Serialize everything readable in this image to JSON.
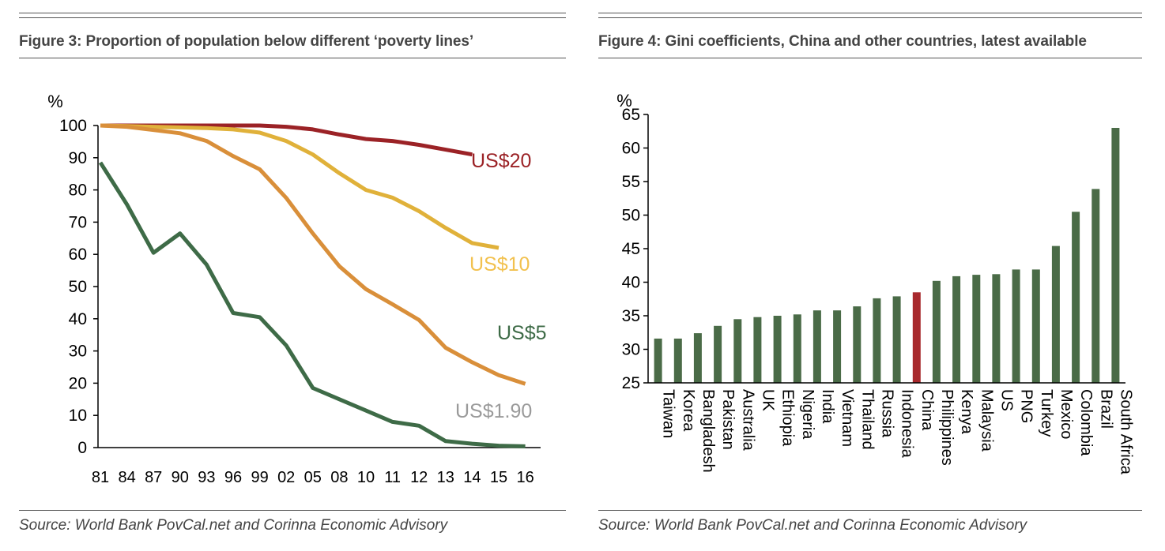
{
  "figure3": {
    "title": "Figure 3: Proportion of population below different ‘poverty lines’",
    "source": "Source: World Bank PovCal.net and Corinna Economic Advisory"
  },
  "figure4": {
    "title": "Figure 4: Gini coefficients, China and other countries, latest available",
    "source": "Source: World Bank PovCal.net and Corinna Economic Advisory"
  },
  "chart_data": [
    {
      "type": "line",
      "title": "Figure 3: Proportion of population below different ‘poverty lines’",
      "ylabel": "%",
      "xlabel": "",
      "ylim": [
        0,
        100
      ],
      "yticks": [
        0,
        10,
        20,
        30,
        40,
        50,
        60,
        70,
        80,
        90,
        100
      ],
      "categories": [
        "81",
        "84",
        "87",
        "90",
        "93",
        "96",
        "99",
        "02",
        "05",
        "08",
        "10",
        "11",
        "12",
        "13",
        "14",
        "15",
        "16"
      ],
      "grid": false,
      "series": [
        {
          "name": "US$20",
          "color": "#9b2226",
          "values": [
            100,
            100,
            100,
            100,
            100,
            100,
            100,
            99.6,
            98.8,
            97.2,
            95.8,
            95.2,
            94.0,
            92.5,
            91.0,
            null,
            null
          ]
        },
        {
          "name": "US$10",
          "color": "#e0b13a",
          "values": [
            100,
            99.8,
            99.6,
            99.4,
            99.2,
            98.8,
            97.8,
            95.2,
            91.0,
            85.2,
            80.0,
            77.6,
            73.4,
            68.2,
            63.5,
            62.0,
            null
          ]
        },
        {
          "name": "US$5",
          "color": "#d98f3a",
          "values": [
            100,
            99.6,
            98.6,
            97.6,
            95.2,
            90.5,
            86.4,
            77.5,
            66.5,
            56.3,
            49.2,
            44.5,
            39.6,
            31.0,
            26.5,
            22.5,
            19.8
          ]
        },
        {
          "name": "US$1.90",
          "color": "#3e6b47",
          "values": [
            88.5,
            75.5,
            60.5,
            66.5,
            56.8,
            41.8,
            40.5,
            31.7,
            18.5,
            15.0,
            11.5,
            8.0,
            6.8,
            2.0,
            1.2,
            0.6,
            0.4
          ]
        }
      ]
    },
    {
      "type": "bar",
      "title": "Figure 4: Gini coefficients, China and other countries, latest available",
      "ylabel": "%",
      "xlabel": "",
      "ylim": [
        25,
        65
      ],
      "yticks": [
        25,
        30,
        35,
        40,
        45,
        50,
        55,
        60,
        65
      ],
      "grid": false,
      "highlight": "China",
      "bar_color": "#4a6b47",
      "highlight_color": "#a8292d",
      "categories": [
        "Taiwan",
        "Korea",
        "Bangladesh",
        "Pakistan",
        "Australia",
        "UK",
        "Ethiopia",
        "Nigeria",
        "India",
        "Vietnam",
        "Thailand",
        "Russia",
        "Indonesia",
        "China",
        "Philippines",
        "Kenya",
        "Malaysia",
        "US",
        "PNG",
        "Turkey",
        "Mexico",
        "Colombia",
        "Brazil",
        "South Africa"
      ],
      "values": [
        31.6,
        31.6,
        32.4,
        33.5,
        34.5,
        34.8,
        35.0,
        35.2,
        35.8,
        35.8,
        36.4,
        37.6,
        37.9,
        38.5,
        40.2,
        40.9,
        41.1,
        41.2,
        41.9,
        41.9,
        45.4,
        50.5,
        53.9,
        63.0
      ]
    }
  ],
  "line_labels": [
    {
      "text": "US$20",
      "color": "#9b2226"
    },
    {
      "text": "US$10",
      "color": "#f2c14e"
    },
    {
      "text": "US$5",
      "color": "#3e6b47"
    },
    {
      "text": "US$1.90",
      "color": "#9a9a9a"
    }
  ]
}
